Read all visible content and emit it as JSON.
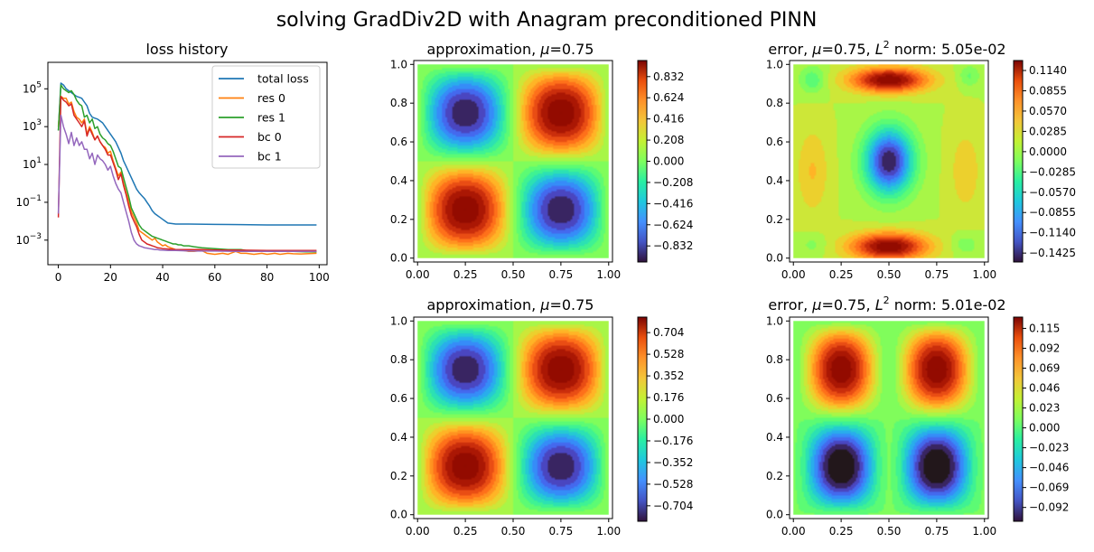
{
  "suptitle": "solving GradDiv2D with Anagram preconditioned PINN",
  "chart_data": [
    {
      "type": "line",
      "title": "loss history",
      "yscale": "log",
      "xlim": [
        -4,
        103
      ],
      "ylim_log10": [
        -4.3,
        6.4
      ],
      "x_ticks": [
        "0",
        "20",
        "40",
        "60",
        "80",
        "100"
      ],
      "y_ticks": [
        {
          "base": "10",
          "exp": "5",
          "val": 5
        },
        {
          "base": "10",
          "exp": "3",
          "val": 3
        },
        {
          "base": "10",
          "exp": "1",
          "val": 1
        },
        {
          "base": "10",
          "exp": "−1",
          "val": -1
        },
        {
          "base": "10",
          "exp": "−3",
          "val": -3
        }
      ],
      "legend_position": "upper right",
      "series": [
        {
          "name": "total loss",
          "color": "#1f77b4",
          "x": [
            0,
            1,
            2,
            3,
            4,
            5,
            6,
            7,
            8,
            9,
            10,
            11,
            12,
            13,
            14,
            15,
            16,
            17,
            18,
            19,
            20,
            21,
            22,
            23,
            24,
            25,
            26,
            27,
            28,
            29,
            30,
            31,
            32,
            33,
            34,
            35,
            36,
            37,
            38,
            39,
            40,
            41,
            42,
            45,
            50,
            60,
            70,
            80,
            90,
            99
          ],
          "log10_y": [
            2.8,
            5.3,
            5.2,
            5.0,
            4.9,
            4.8,
            4.7,
            4.6,
            4.55,
            4.5,
            4.3,
            4.1,
            3.7,
            3.5,
            3.45,
            3.4,
            3.3,
            3.2,
            3.0,
            2.8,
            2.6,
            2.4,
            2.2,
            1.9,
            1.6,
            1.2,
            0.9,
            0.6,
            0.3,
            0.0,
            -0.3,
            -0.5,
            -0.65,
            -0.8,
            -1.0,
            -1.2,
            -1.45,
            -1.6,
            -1.7,
            -1.8,
            -1.9,
            -2.0,
            -2.1,
            -2.15,
            -2.15,
            -2.17,
            -2.18,
            -2.2,
            -2.2,
            -2.2
          ]
        },
        {
          "name": "res 0",
          "color": "#ff7f0e",
          "x": [
            0,
            1,
            2,
            3,
            4,
            5,
            6,
            7,
            8,
            9,
            10,
            11,
            12,
            13,
            14,
            15,
            16,
            17,
            18,
            19,
            20,
            21,
            22,
            23,
            24,
            25,
            26,
            27,
            28,
            29,
            30,
            31,
            32,
            33,
            34,
            35,
            36,
            37,
            38,
            39,
            40,
            41,
            42,
            43,
            44,
            45,
            46,
            47,
            48,
            50,
            52,
            55,
            57,
            60,
            63,
            65,
            68,
            70,
            72,
            75,
            78,
            80,
            83,
            85,
            88,
            90,
            93,
            95,
            99
          ],
          "log10_y": [
            3.0,
            4.6,
            4.5,
            4.5,
            4.2,
            4.3,
            3.8,
            3.5,
            3.4,
            3.2,
            3.4,
            2.6,
            3.0,
            2.7,
            2.3,
            2.5,
            2.2,
            2.0,
            1.9,
            1.6,
            1.7,
            1.2,
            0.8,
            0.4,
            0.6,
            0.0,
            -0.5,
            -0.9,
            -1.5,
            -1.8,
            -2.1,
            -2.5,
            -2.6,
            -2.7,
            -2.8,
            -2.9,
            -3.0,
            -2.9,
            -3.1,
            -3.2,
            -3.3,
            -3.25,
            -3.35,
            -3.4,
            -3.45,
            -3.5,
            -3.5,
            -3.55,
            -3.55,
            -3.6,
            -3.6,
            -3.55,
            -3.7,
            -3.75,
            -3.7,
            -3.75,
            -3.6,
            -3.7,
            -3.7,
            -3.75,
            -3.7,
            -3.75,
            -3.7,
            -3.75,
            -3.7,
            -3.72,
            -3.73,
            -3.72,
            -3.7
          ]
        },
        {
          "name": "res 1",
          "color": "#2ca02c",
          "x": [
            0,
            1,
            2,
            3,
            4,
            5,
            6,
            7,
            8,
            9,
            10,
            11,
            12,
            13,
            14,
            15,
            16,
            17,
            18,
            19,
            20,
            21,
            22,
            23,
            24,
            25,
            26,
            27,
            28,
            29,
            30,
            31,
            32,
            33,
            34,
            35,
            36,
            37,
            38,
            39,
            40,
            41,
            42,
            43,
            44,
            45,
            46,
            47,
            48,
            50,
            52,
            55,
            60,
            65,
            70,
            72,
            75,
            80,
            85,
            90,
            95,
            99
          ],
          "log10_y": [
            2.8,
            5.2,
            5.0,
            4.9,
            4.8,
            4.9,
            4.7,
            4.4,
            4.2,
            4.1,
            3.5,
            3.6,
            3.2,
            3.4,
            2.9,
            3.0,
            2.6,
            2.4,
            2.3,
            2.1,
            2.0,
            1.7,
            1.3,
            0.9,
            0.8,
            0.3,
            -0.2,
            -0.7,
            -1.3,
            -1.6,
            -1.9,
            -2.2,
            -2.4,
            -2.5,
            -2.6,
            -2.7,
            -2.8,
            -2.85,
            -2.9,
            -2.95,
            -3.0,
            -3.05,
            -3.1,
            -3.15,
            -3.2,
            -3.2,
            -3.25,
            -3.25,
            -3.3,
            -3.3,
            -3.35,
            -3.4,
            -3.45,
            -3.5,
            -3.5,
            -3.55,
            -3.55,
            -3.6,
            -3.6,
            -3.6,
            -3.62,
            -3.62
          ]
        },
        {
          "name": "bc 0",
          "color": "#d62728",
          "x": [
            0,
            1,
            2,
            3,
            4,
            5,
            6,
            7,
            8,
            9,
            10,
            11,
            12,
            13,
            14,
            15,
            16,
            17,
            18,
            19,
            20,
            21,
            22,
            23,
            24,
            25,
            26,
            27,
            28,
            29,
            30,
            31,
            32,
            33,
            34,
            35,
            36,
            37,
            38,
            39,
            40,
            42,
            45,
            50,
            55,
            60,
            70,
            80,
            90,
            99
          ],
          "log10_y": [
            -1.8,
            4.6,
            4.4,
            4.3,
            4.1,
            4.2,
            3.6,
            3.4,
            3.2,
            3.0,
            3.3,
            2.5,
            2.9,
            2.6,
            2.3,
            2.5,
            2.2,
            2.0,
            1.8,
            1.5,
            1.5,
            1.1,
            0.7,
            0.2,
            0.5,
            -0.1,
            -0.6,
            -1.2,
            -1.7,
            -2.0,
            -2.3,
            -2.7,
            -3.0,
            -3.1,
            -3.2,
            -3.25,
            -3.3,
            -3.35,
            -3.4,
            -3.42,
            -3.45,
            -3.47,
            -3.5,
            -3.5,
            -3.5,
            -3.52,
            -3.53,
            -3.55,
            -3.55,
            -3.55
          ]
        },
        {
          "name": "bc 1",
          "color": "#9467bd",
          "x": [
            0,
            1,
            2,
            3,
            4,
            5,
            6,
            7,
            8,
            9,
            10,
            11,
            12,
            13,
            14,
            15,
            16,
            17,
            18,
            19,
            20,
            21,
            22,
            23,
            24,
            25,
            26,
            27,
            28,
            29,
            30,
            31,
            32,
            33,
            34,
            35,
            36,
            37,
            38,
            39,
            40,
            42,
            45,
            50,
            55,
            60,
            70,
            80,
            90,
            99
          ],
          "log10_y": [
            -1.6,
            3.6,
            3.0,
            2.6,
            2.1,
            2.7,
            2.0,
            2.4,
            2.0,
            2.2,
            1.8,
            1.8,
            1.3,
            1.6,
            1.0,
            1.5,
            1.3,
            1.2,
            1.0,
            0.7,
            0.9,
            0.4,
            0.0,
            -0.3,
            -0.5,
            -1.0,
            -1.5,
            -2.0,
            -2.6,
            -3.0,
            -3.2,
            -3.3,
            -3.35,
            -3.4,
            -3.42,
            -3.45,
            -3.47,
            -3.5,
            -3.5,
            -3.52,
            -3.53,
            -3.55,
            -3.55,
            -3.57,
            -3.58,
            -3.58,
            -3.6,
            -3.6,
            -3.6,
            -3.6
          ]
        }
      ]
    },
    {
      "type": "heatmap",
      "title_text": "approximation, ",
      "mu_text": "=0.75",
      "field": "sin(2πx)·sin(2πy)",
      "amplitude": 0.99,
      "x_ticks": [
        "0.00",
        "0.25",
        "0.50",
        "0.75",
        "1.00"
      ],
      "y_ticks": [
        "0.0",
        "0.2",
        "0.4",
        "0.6",
        "0.8",
        "1.0"
      ],
      "colormap": "turbo",
      "colorbar_range": [
        -0.99,
        0.99
      ],
      "colorbar_ticks": [
        "0.832",
        "0.624",
        "0.416",
        "0.208",
        "0.000",
        "−0.208",
        "−0.416",
        "−0.624",
        "−0.832"
      ],
      "colorbar_tick_values": [
        0.832,
        0.624,
        0.416,
        0.208,
        0.0,
        -0.208,
        -0.416,
        -0.624,
        -0.832
      ]
    },
    {
      "type": "heatmap",
      "title_text": "error, ",
      "mu_text": "=0.75, ",
      "norm_text": " norm: 5.05e-02",
      "x_ticks": [
        "0.00",
        "0.25",
        "0.50",
        "0.75",
        "1.00"
      ],
      "y_ticks": [
        "0.0",
        "0.2",
        "0.4",
        "0.6",
        "0.8",
        "1.0"
      ],
      "colormap": "turbo",
      "colorbar_range": [
        -0.155,
        0.128
      ],
      "colorbar_ticks": [
        "0.1140",
        "0.0855",
        "0.0570",
        "0.0285",
        "0.0000",
        "−0.0285",
        "−0.0570",
        "−0.0855",
        "−0.1140",
        "−0.1425"
      ],
      "colorbar_tick_values": [
        0.114,
        0.0855,
        0.057,
        0.0285,
        0.0,
        -0.0285,
        -0.057,
        -0.0855,
        -0.114,
        -0.1425
      ]
    },
    {
      "type": "heatmap",
      "title_text": "approximation, ",
      "mu_text": "=0.75",
      "field": "sin(2πx)·sin(2πy)",
      "amplitude": 0.83,
      "x_ticks": [
        "0.00",
        "0.25",
        "0.50",
        "0.75",
        "1.00"
      ],
      "y_ticks": [
        "0.0",
        "0.2",
        "0.4",
        "0.6",
        "0.8",
        "1.0"
      ],
      "colormap": "turbo",
      "colorbar_range": [
        -0.83,
        0.83
      ],
      "colorbar_ticks": [
        "0.704",
        "0.528",
        "0.352",
        "0.176",
        "0.000",
        "−0.176",
        "−0.352",
        "−0.528",
        "−0.704"
      ],
      "colorbar_tick_values": [
        0.704,
        0.528,
        0.352,
        0.176,
        0.0,
        -0.176,
        -0.352,
        -0.528,
        -0.704
      ]
    },
    {
      "type": "heatmap",
      "title_text": "error, ",
      "mu_text": "=0.75, ",
      "norm_text": " norm: 5.01e-02",
      "x_ticks": [
        "0.00",
        "0.25",
        "0.50",
        "0.75",
        "1.00"
      ],
      "y_ticks": [
        "0.0",
        "0.2",
        "0.4",
        "0.6",
        "0.8",
        "1.0"
      ],
      "colormap": "turbo",
      "colorbar_range": [
        -0.108,
        0.128
      ],
      "colorbar_ticks": [
        "0.115",
        "0.092",
        "0.069",
        "0.046",
        "0.023",
        "0.000",
        "−0.023",
        "−0.046",
        "−0.069",
        "−0.092"
      ],
      "colorbar_tick_values": [
        0.115,
        0.092,
        0.069,
        0.046,
        0.023,
        0.0,
        -0.023,
        -0.046,
        -0.069,
        -0.092
      ]
    }
  ]
}
